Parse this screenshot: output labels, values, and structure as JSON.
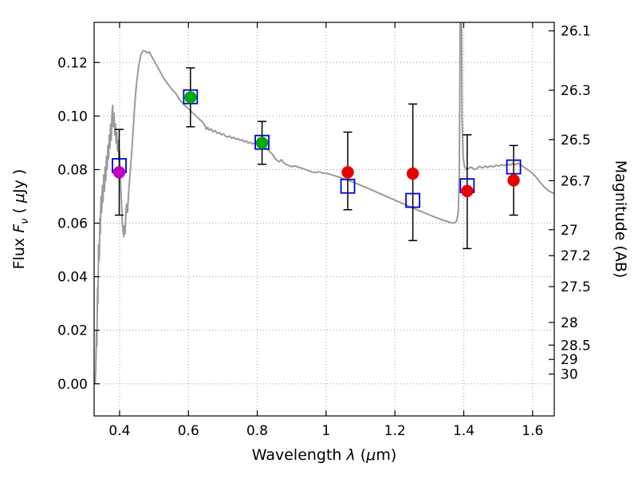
{
  "figure": {
    "background": "#ffffff",
    "frame_color": "#000000",
    "grid_color": "#9e9e9e"
  },
  "chart_data": {
    "type": "line+scatter",
    "title": "",
    "xlabel_parts": [
      {
        "t": "Wavelength  ",
        "style": "normal"
      },
      {
        "t": "λ",
        "style": "italic"
      },
      {
        "t": " (",
        "style": "normal"
      },
      {
        "t": "μ",
        "style": "italic"
      },
      {
        "t": "m)",
        "style": "normal"
      }
    ],
    "ylabel_left_parts": [
      {
        "t": "Flux  ",
        "style": "normal"
      },
      {
        "t": "F",
        "style": "italic"
      },
      {
        "t": "ν",
        "style": "sub"
      },
      {
        "t": "  ( ",
        "style": "normal"
      },
      {
        "t": "μ",
        "style": "italic"
      },
      {
        "t": "Jy )",
        "style": "normal"
      }
    ],
    "ylabel_right": "Magnitude (AB)",
    "xlim": [
      0.326,
      1.663
    ],
    "ylim": [
      -0.012,
      0.135
    ],
    "grid": {
      "show": true,
      "style": "dotted"
    },
    "legend": "none",
    "x_ticks": [
      {
        "value": 0.4,
        "label": "0.4"
      },
      {
        "value": 0.6,
        "label": "0.6"
      },
      {
        "value": 0.8,
        "label": "0.8"
      },
      {
        "value": 1.0,
        "label": "1"
      },
      {
        "value": 1.2,
        "label": "1.2"
      },
      {
        "value": 1.4,
        "label": "1.4"
      },
      {
        "value": 1.6,
        "label": "1.6"
      }
    ],
    "y_ticks_left": [
      {
        "value": 0.0,
        "label": "0.00"
      },
      {
        "value": 0.02,
        "label": "0.02"
      },
      {
        "value": 0.04,
        "label": "0.04"
      },
      {
        "value": 0.06,
        "label": "0.06"
      },
      {
        "value": 0.08,
        "label": "0.08"
      },
      {
        "value": 0.1,
        "label": "0.10"
      },
      {
        "value": 0.12,
        "label": "0.12"
      }
    ],
    "y_ticks_right": {
      "ab_zeropoint_ujy": 23.9,
      "ticks": [
        {
          "magnitude": 26.1,
          "label": "26.1"
        },
        {
          "magnitude": 26.3,
          "label": "26.3"
        },
        {
          "magnitude": 26.5,
          "label": "26.5"
        },
        {
          "magnitude": 26.7,
          "label": "26.7"
        },
        {
          "magnitude": 27.0,
          "label": "27"
        },
        {
          "magnitude": 27.2,
          "label": "27.2"
        },
        {
          "magnitude": 27.5,
          "label": "27.5"
        },
        {
          "magnitude": 28.0,
          "label": "28"
        },
        {
          "magnitude": 28.5,
          "label": "28.5"
        },
        {
          "magnitude": 29.0,
          "label": "29"
        },
        {
          "magnitude": 30.0,
          "label": "30"
        }
      ]
    },
    "series": [
      {
        "name": "model-spectrum",
        "type": "line",
        "color": "#9a9a9a",
        "linewidth": 2,
        "points": [
          [
            0.329,
            0.0
          ],
          [
            0.331,
            0.006
          ],
          [
            0.333,
            0.02
          ],
          [
            0.334,
            0.014
          ],
          [
            0.336,
            0.036
          ],
          [
            0.337,
            0.03
          ],
          [
            0.339,
            0.052
          ],
          [
            0.341,
            0.046
          ],
          [
            0.343,
            0.062
          ],
          [
            0.344,
            0.056
          ],
          [
            0.346,
            0.07
          ],
          [
            0.348,
            0.064
          ],
          [
            0.35,
            0.074
          ],
          [
            0.352,
            0.068
          ],
          [
            0.354,
            0.078
          ],
          [
            0.356,
            0.072
          ],
          [
            0.358,
            0.081
          ],
          [
            0.36,
            0.076
          ],
          [
            0.362,
            0.085
          ],
          [
            0.364,
            0.08
          ],
          [
            0.366,
            0.089
          ],
          [
            0.368,
            0.084
          ],
          [
            0.37,
            0.093
          ],
          [
            0.372,
            0.088
          ],
          [
            0.374,
            0.097
          ],
          [
            0.376,
            0.091
          ],
          [
            0.378,
            0.101
          ],
          [
            0.38,
            0.104
          ],
          [
            0.382,
            0.096
          ],
          [
            0.384,
            0.101
          ],
          [
            0.386,
            0.093
          ],
          [
            0.388,
            0.097
          ],
          [
            0.39,
            0.09
          ],
          [
            0.392,
            0.094
          ],
          [
            0.394,
            0.087
          ],
          [
            0.396,
            0.091
          ],
          [
            0.398,
            0.084
          ],
          [
            0.4,
            0.087
          ],
          [
            0.402,
            0.079
          ],
          [
            0.404,
            0.072
          ],
          [
            0.406,
            0.066
          ],
          [
            0.408,
            0.06
          ],
          [
            0.41,
            0.057
          ],
          [
            0.412,
            0.055
          ],
          [
            0.414,
            0.059
          ],
          [
            0.416,
            0.056
          ],
          [
            0.418,
            0.063
          ],
          [
            0.42,
            0.067
          ],
          [
            0.423,
            0.064
          ],
          [
            0.426,
            0.071
          ],
          [
            0.429,
            0.076
          ],
          [
            0.432,
            0.081
          ],
          [
            0.435,
            0.086
          ],
          [
            0.438,
            0.092
          ],
          [
            0.441,
            0.098
          ],
          [
            0.444,
            0.104
          ],
          [
            0.447,
            0.109
          ],
          [
            0.45,
            0.113
          ],
          [
            0.453,
            0.116
          ],
          [
            0.456,
            0.119
          ],
          [
            0.459,
            0.121
          ],
          [
            0.462,
            0.123
          ],
          [
            0.466,
            0.124
          ],
          [
            0.47,
            0.1245
          ],
          [
            0.475,
            0.1242
          ],
          [
            0.48,
            0.1236
          ],
          [
            0.486,
            0.124
          ],
          [
            0.492,
            0.1226
          ],
          [
            0.498,
            0.1212
          ],
          [
            0.504,
            0.1198
          ],
          [
            0.51,
            0.1184
          ],
          [
            0.516,
            0.117
          ],
          [
            0.522,
            0.1156
          ],
          [
            0.528,
            0.1142
          ],
          [
            0.534,
            0.113
          ],
          [
            0.54,
            0.112
          ],
          [
            0.546,
            0.111
          ],
          [
            0.552,
            0.11
          ],
          [
            0.558,
            0.1092
          ],
          [
            0.564,
            0.1084
          ],
          [
            0.57,
            0.107
          ],
          [
            0.576,
            0.1058
          ],
          [
            0.582,
            0.105
          ],
          [
            0.588,
            0.1042
          ],
          [
            0.594,
            0.1034
          ],
          [
            0.6,
            0.1028
          ],
          [
            0.606,
            0.102
          ],
          [
            0.612,
            0.1012
          ],
          [
            0.618,
            0.1006
          ],
          [
            0.624,
            0.0998
          ],
          [
            0.63,
            0.099
          ],
          [
            0.636,
            0.0984
          ],
          [
            0.642,
            0.0976
          ],
          [
            0.648,
            0.0964
          ],
          [
            0.652,
            0.095
          ],
          [
            0.656,
            0.0958
          ],
          [
            0.661,
            0.0947
          ],
          [
            0.666,
            0.0952
          ],
          [
            0.672,
            0.0941
          ],
          [
            0.678,
            0.0946
          ],
          [
            0.684,
            0.0935
          ],
          [
            0.69,
            0.0939
          ],
          [
            0.696,
            0.093
          ],
          [
            0.702,
            0.0934
          ],
          [
            0.708,
            0.0925
          ],
          [
            0.714,
            0.0921
          ],
          [
            0.72,
            0.0926
          ],
          [
            0.726,
            0.0917
          ],
          [
            0.732,
            0.0921
          ],
          [
            0.738,
            0.0913
          ],
          [
            0.744,
            0.0916
          ],
          [
            0.75,
            0.0909
          ],
          [
            0.756,
            0.0912
          ],
          [
            0.762,
            0.0904
          ],
          [
            0.768,
            0.0907
          ],
          [
            0.774,
            0.0899
          ],
          [
            0.78,
            0.0902
          ],
          [
            0.786,
            0.0896
          ],
          [
            0.792,
            0.0899
          ],
          [
            0.798,
            0.0904
          ],
          [
            0.804,
            0.0897
          ],
          [
            0.81,
            0.0901
          ],
          [
            0.816,
            0.0894
          ],
          [
            0.822,
            0.0886
          ],
          [
            0.828,
            0.0878
          ],
          [
            0.834,
            0.087
          ],
          [
            0.84,
            0.0863
          ],
          [
            0.846,
            0.0854
          ],
          [
            0.852,
            0.0841
          ],
          [
            0.858,
            0.0834
          ],
          [
            0.864,
            0.0829
          ],
          [
            0.87,
            0.0837
          ],
          [
            0.876,
            0.0827
          ],
          [
            0.882,
            0.0821
          ],
          [
            0.888,
            0.0817
          ],
          [
            0.894,
            0.0814
          ],
          [
            0.9,
            0.0811
          ],
          [
            0.91,
            0.0814
          ],
          [
            0.92,
            0.0809
          ],
          [
            0.93,
            0.0805
          ],
          [
            0.94,
            0.0801
          ],
          [
            0.95,
            0.0795
          ],
          [
            0.96,
            0.0791
          ],
          [
            0.97,
            0.0789
          ],
          [
            0.98,
            0.0792
          ],
          [
            0.99,
            0.0787
          ],
          [
            1.0,
            0.0787
          ],
          [
            1.015,
            0.0781
          ],
          [
            1.03,
            0.0775
          ],
          [
            1.045,
            0.0769
          ],
          [
            1.06,
            0.0762
          ],
          [
            1.075,
            0.0755
          ],
          [
            1.09,
            0.0747
          ],
          [
            1.105,
            0.0739
          ],
          [
            1.12,
            0.0731
          ],
          [
            1.135,
            0.0723
          ],
          [
            1.15,
            0.0714
          ],
          [
            1.165,
            0.0706
          ],
          [
            1.18,
            0.0697
          ],
          [
            1.195,
            0.0689
          ],
          [
            1.21,
            0.068
          ],
          [
            1.225,
            0.0672
          ],
          [
            1.24,
            0.0663
          ],
          [
            1.255,
            0.0655
          ],
          [
            1.27,
            0.0647
          ],
          [
            1.285,
            0.0639
          ],
          [
            1.3,
            0.0631
          ],
          [
            1.315,
            0.0623
          ],
          [
            1.33,
            0.0616
          ],
          [
            1.345,
            0.0609
          ],
          [
            1.358,
            0.0604
          ],
          [
            1.368,
            0.06
          ],
          [
            1.375,
            0.0602
          ],
          [
            1.38,
            0.061
          ],
          [
            1.384,
            0.064
          ],
          [
            1.387,
            0.078
          ],
          [
            1.389,
            0.115
          ],
          [
            1.391,
            0.25
          ],
          [
            1.393,
            0.16
          ],
          [
            1.395,
            0.1
          ],
          [
            1.398,
            0.085
          ],
          [
            1.402,
            0.0812
          ],
          [
            1.408,
            0.08
          ],
          [
            1.415,
            0.0805
          ],
          [
            1.422,
            0.081
          ],
          [
            1.43,
            0.08
          ],
          [
            1.438,
            0.0804
          ],
          [
            1.446,
            0.0812
          ],
          [
            1.454,
            0.0806
          ],
          [
            1.462,
            0.0813
          ],
          [
            1.47,
            0.0808
          ],
          [
            1.478,
            0.0814
          ],
          [
            1.486,
            0.081
          ],
          [
            1.494,
            0.0817
          ],
          [
            1.502,
            0.0813
          ],
          [
            1.51,
            0.0819
          ],
          [
            1.518,
            0.0814
          ],
          [
            1.526,
            0.0821
          ],
          [
            1.534,
            0.0816
          ],
          [
            1.542,
            0.0823
          ],
          [
            1.55,
            0.0818
          ],
          [
            1.558,
            0.0824
          ],
          [
            1.566,
            0.0817
          ],
          [
            1.574,
            0.081
          ],
          [
            1.582,
            0.0803
          ],
          [
            1.59,
            0.0796
          ],
          [
            1.598,
            0.0788
          ],
          [
            1.606,
            0.0778
          ],
          [
            1.614,
            0.0766
          ],
          [
            1.622,
            0.0752
          ],
          [
            1.632,
            0.0738
          ],
          [
            1.645,
            0.0722
          ],
          [
            1.663,
            0.071
          ]
        ]
      },
      {
        "name": "model-photometry",
        "type": "scatter",
        "marker": "open-square",
        "color": "#0000e0",
        "marker_half_size": 8.5,
        "points": [
          {
            "x": 0.399,
            "y": 0.0815
          },
          {
            "x": 0.606,
            "y": 0.1072
          },
          {
            "x": 0.814,
            "y": 0.0902
          },
          {
            "x": 1.063,
            "y": 0.0738
          },
          {
            "x": 1.252,
            "y": 0.0685
          },
          {
            "x": 1.41,
            "y": 0.074
          },
          {
            "x": 1.545,
            "y": 0.081
          }
        ]
      },
      {
        "name": "observed-photometry",
        "type": "scatter-errorbar",
        "marker": "filled-circle",
        "marker_radius": 7.2,
        "errorbar_color": "#000000",
        "points": [
          {
            "x": 0.399,
            "y": 0.079,
            "err_minus": 0.016,
            "err_plus": 0.016,
            "color": "#c400c4"
          },
          {
            "x": 0.606,
            "y": 0.107,
            "err_minus": 0.011,
            "err_plus": 0.011,
            "color": "#00a800"
          },
          {
            "x": 0.814,
            "y": 0.09,
            "err_minus": 0.008,
            "err_plus": 0.008,
            "color": "#00a800"
          },
          {
            "x": 1.063,
            "y": 0.079,
            "err_minus": 0.014,
            "err_plus": 0.015,
            "color": "#e80000"
          },
          {
            "x": 1.252,
            "y": 0.0785,
            "err_minus": 0.025,
            "err_plus": 0.026,
            "color": "#e80000"
          },
          {
            "x": 1.41,
            "y": 0.072,
            "err_minus": 0.0215,
            "err_plus": 0.021,
            "color": "#e80000"
          },
          {
            "x": 1.545,
            "y": 0.076,
            "err_minus": 0.013,
            "err_plus": 0.013,
            "color": "#e80000"
          }
        ]
      }
    ]
  }
}
